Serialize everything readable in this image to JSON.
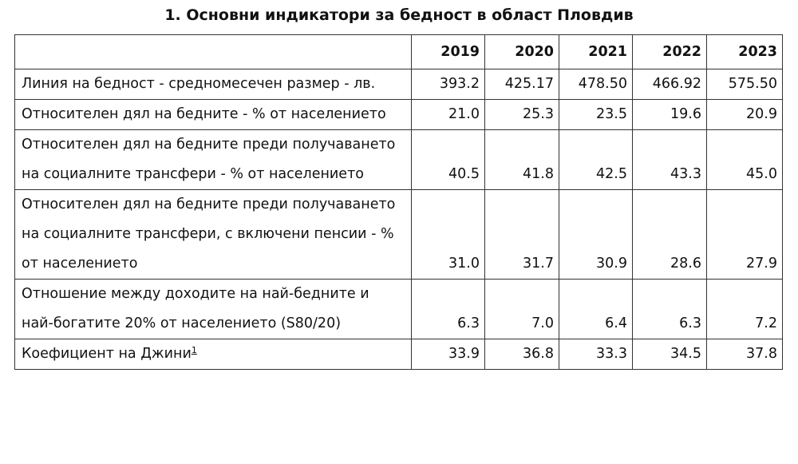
{
  "title": "1. Основни индикатори за бедност в област Пловдив",
  "table": {
    "columns": [
      "2019",
      "2020",
      "2021",
      "2022",
      "2023"
    ],
    "rows": [
      {
        "label": "Линия на бедност - средномесечен размер - лв.",
        "values": [
          "393.2",
          "425.17",
          "478.50",
          "466.92",
          "575.50"
        ]
      },
      {
        "label": "Относителен дял на бедните - % от населението",
        "values": [
          "21.0",
          "25.3",
          "23.5",
          "19.6",
          "20.9"
        ]
      },
      {
        "label": "Относителен дял на бедните преди получаването на социалните трансфери - % от населението",
        "values": [
          "40.5",
          "41.8",
          "42.5",
          "43.3",
          "45.0"
        ]
      },
      {
        "label": "Относителен дял на бедните преди получаването на социалните трансфери, с включени пенсии - % от населението",
        "values": [
          "31.0",
          "31.7",
          "30.9",
          "28.6",
          "27.9"
        ]
      },
      {
        "label": "Отношение между доходите на най-бедните и най-богатите 20% от населението (S80/20)",
        "values": [
          "6.3",
          "7.0",
          "6.4",
          "6.3",
          "7.2"
        ]
      },
      {
        "label": "Коефициент на Джини",
        "footnote": "1",
        "values": [
          "33.9",
          "36.8",
          "33.3",
          "34.5",
          "37.8"
        ]
      }
    ]
  }
}
